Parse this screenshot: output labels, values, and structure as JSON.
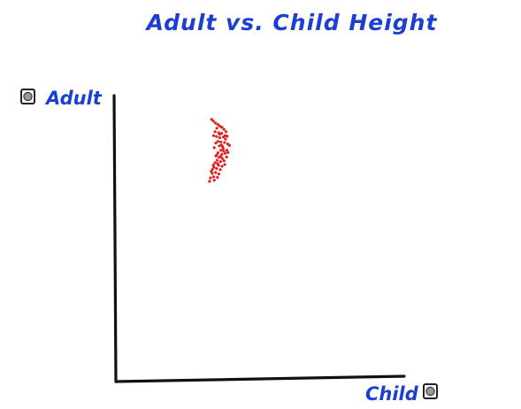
{
  "chart_data": {
    "type": "scatter",
    "title": "Adult vs. Child Height",
    "xlabel": "Child",
    "ylabel": "Adult",
    "xlim": [
      0,
      100
    ],
    "ylim": [
      0,
      100
    ],
    "grid": false,
    "series": [
      {
        "color": "#e0201c",
        "points": [
          [
            33.2,
            91.7
          ],
          [
            33.8,
            91.1
          ],
          [
            34.5,
            90.4
          ],
          [
            35.4,
            89.9
          ],
          [
            36.1,
            89.3
          ],
          [
            35.0,
            88.6
          ],
          [
            36.8,
            88.9
          ],
          [
            37.5,
            88.2
          ],
          [
            34.4,
            87.4
          ],
          [
            35.6,
            87.0
          ],
          [
            36.7,
            86.8
          ],
          [
            38.2,
            87.4
          ],
          [
            33.9,
            86.0
          ],
          [
            34.9,
            85.7
          ],
          [
            36.0,
            85.3
          ],
          [
            37.3,
            85.5
          ],
          [
            38.0,
            84.8
          ],
          [
            35.4,
            84.0
          ],
          [
            36.4,
            83.8
          ],
          [
            34.7,
            83.4
          ],
          [
            37.7,
            83.6
          ],
          [
            38.8,
            83.1
          ],
          [
            35.9,
            82.4
          ],
          [
            37.0,
            82.2
          ],
          [
            34.1,
            81.8
          ],
          [
            36.4,
            80.9
          ],
          [
            37.4,
            80.6
          ],
          [
            38.5,
            80.9
          ],
          [
            35.4,
            80.0
          ],
          [
            36.8,
            79.5
          ],
          [
            37.9,
            79.8
          ],
          [
            34.7,
            78.9
          ],
          [
            35.8,
            78.4
          ],
          [
            36.9,
            78.0
          ],
          [
            38.4,
            78.5
          ],
          [
            35.1,
            77.4
          ],
          [
            36.3,
            76.9
          ],
          [
            37.5,
            77.2
          ],
          [
            34.4,
            76.5
          ],
          [
            33.8,
            75.7
          ],
          [
            35.6,
            75.6
          ],
          [
            36.8,
            75.3
          ],
          [
            34.9,
            74.5
          ],
          [
            33.5,
            74.2
          ],
          [
            36.2,
            74.1
          ],
          [
            34.6,
            73.1
          ],
          [
            33.4,
            72.8
          ],
          [
            35.7,
            72.6
          ],
          [
            33.9,
            71.6
          ],
          [
            32.8,
            71.2
          ],
          [
            35.2,
            71.4
          ],
          [
            34.1,
            70.4
          ],
          [
            32.5,
            70.0
          ],
          [
            36.6,
            82.7
          ],
          [
            37.9,
            86.0
          ],
          [
            35.0,
            79.2
          ],
          [
            36.0,
            86.5
          ],
          [
            38.6,
            85.8
          ],
          [
            37.2,
            81.5
          ],
          [
            35.3,
            76.2
          ],
          [
            34.0,
            75.0
          ],
          [
            33.1,
            73.5
          ],
          [
            36.4,
            78.8
          ],
          [
            37.8,
            75.9
          ],
          [
            38.9,
            80.1
          ],
          [
            39.4,
            82.6
          ]
        ]
      }
    ]
  }
}
